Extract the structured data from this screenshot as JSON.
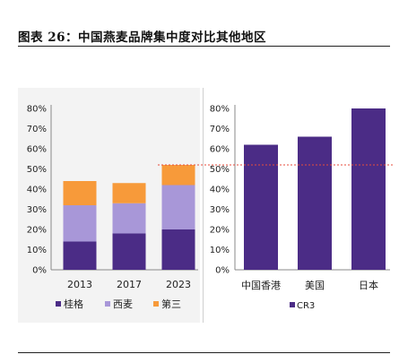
{
  "figure_title": "图表 26：中国燕麦品牌集中度对比其他地区",
  "colors": {
    "guiri": "#4b2c86",
    "ximai": "#a897d8",
    "disan": "#f79a3a",
    "cr3": "#4b2c86",
    "reference_line": "#e74c3c"
  },
  "chart_data": [
    {
      "type": "bar",
      "stacked": true,
      "categories": [
        "2013",
        "2017",
        "2023"
      ],
      "series": [
        {
          "name": "桂格",
          "values": [
            14,
            18,
            20
          ]
        },
        {
          "name": "西麦",
          "values": [
            18,
            15,
            22
          ]
        },
        {
          "name": "第三",
          "values": [
            12,
            10,
            10
          ]
        }
      ],
      "yticks": [
        "0%",
        "10%",
        "20%",
        "30%",
        "40%",
        "50%",
        "60%",
        "70%",
        "80%"
      ],
      "ylim": [
        0,
        80
      ],
      "legend_position": "bottom",
      "grid": false
    },
    {
      "type": "bar",
      "categories": [
        "中国香港",
        "美国",
        "日本"
      ],
      "series": [
        {
          "name": "CR3",
          "values": [
            62,
            66,
            80
          ]
        }
      ],
      "yticks": [
        "0%",
        "10%",
        "20%",
        "30%",
        "40%",
        "50%",
        "60%",
        "70%",
        "80%"
      ],
      "ylim": [
        0,
        80
      ],
      "reference_line": 52,
      "legend_position": "bottom",
      "grid": false
    }
  ]
}
